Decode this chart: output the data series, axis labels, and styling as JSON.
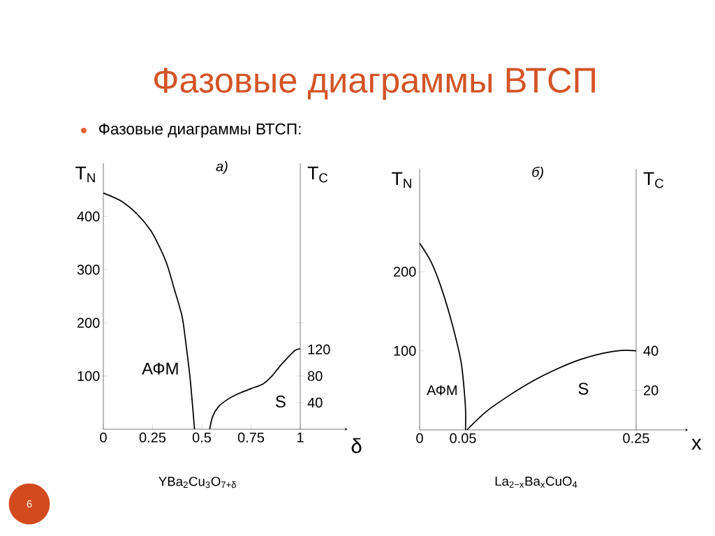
{
  "chart_data": [
    {
      "type": "other",
      "title": "Фазовые диаграммы ВТСП",
      "subtitle": "Фазовые диаграммы ВТСП:",
      "annotations": [
        "6"
      ]
    },
    {
      "type": "line",
      "title": "а)",
      "xlabel": "δ",
      "ylabel": "T$_{N}$",
      "y2label": "T$_{C}$",
      "xlim": [
        0,
        1.24
      ],
      "xticks": [
        0,
        0.25,
        0.5,
        0.75,
        1
      ],
      "ylim": [
        0,
        500
      ],
      "yticks": [
        100,
        200,
        300,
        400
      ],
      "y2lim": [
        0,
        400
      ],
      "y2ticks": [
        40,
        80,
        120,
        {
          "value": 160,
          "label": null
        }
      ],
      "series": [
        {
          "color": "#000000",
          "x": [
            0,
            0.09,
            0.17,
            0.24,
            0.29,
            0.325,
            0.36,
            0.4,
            0.42,
            0.44,
            0.455,
            0.463
          ],
          "values": [
            444,
            429,
            405,
            374,
            339,
            308,
            264,
            212,
            159,
            98,
            36,
            0
          ]
        },
        {
          "color": "#000000",
          "axis": "y2",
          "x": [
            0.54,
            0.555,
            0.585,
            0.632,
            0.69,
            0.75,
            0.81,
            0.856,
            0.9,
            0.95,
            0.975,
            1.0
          ],
          "values": [
            0,
            19,
            34,
            45,
            54,
            61,
            68,
            80,
            96,
            112,
            119,
            121
          ]
        }
      ],
      "annotations": [
        "АФМ",
        "S",
        "YBa$_{2}$Cu$_{3}$O$_{7+δ}$"
      ]
    },
    {
      "type": "line",
      "title": "б)",
      "xlabel": "x",
      "ylabel": "T$_{N}$",
      "y2label": "T$_{C}$",
      "xlim": [
        0,
        0.31
      ],
      "xticks": [
        0,
        0.05,
        0.25
      ],
      "ylim": [
        0,
        330
      ],
      "yticks": [
        100,
        200
      ],
      "y2lim": [
        0,
        132
      ],
      "y2ticks": [
        20,
        40
      ],
      "series": [
        {
          "color": "#000000",
          "x": [
            0,
            0.013,
            0.024,
            0.034,
            0.042,
            0.048,
            0.051,
            0.053,
            0.053
          ],
          "values": [
            236,
            213,
            183,
            148,
            115,
            85,
            56,
            26,
            0
          ]
        },
        {
          "color": "#000000",
          "axis": "y2",
          "x": [
            0.0546,
            0.077,
            0.104,
            0.131,
            0.158,
            0.185,
            0.212,
            0.233,
            0.25
          ],
          "values": [
            0,
            9.3,
            17.6,
            24.8,
            30.7,
            35.5,
            38.8,
            40.2,
            40
          ]
        }
      ],
      "annotations": [
        "АФМ",
        "S",
        "La$_{2−x}$Ba$_{x}$CuO$_{4}$"
      ]
    }
  ]
}
